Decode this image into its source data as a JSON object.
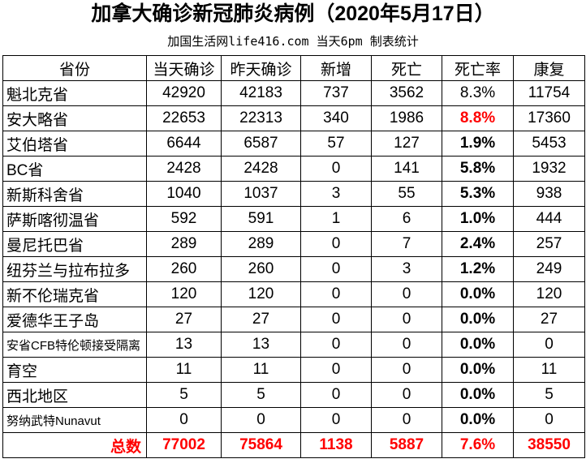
{
  "title": "加拿大确诊新冠肺炎病例（2020年5月17日）",
  "subtitle": "加国生活网life416.com 当天6pm 制表统计",
  "colors": {
    "highlight": "#ff0000"
  },
  "columns": [
    "省份",
    "当天确诊",
    "昨天确诊",
    "新增",
    "死亡",
    "死亡率",
    "康复"
  ],
  "rows": [
    {
      "name": "魁北克省",
      "today": "42920",
      "yesterday": "42183",
      "new": "737",
      "deaths": "3562",
      "rate": "8.3%",
      "recovered": "11754",
      "rate_style": "normal"
    },
    {
      "name": "安大略省",
      "today": "22653",
      "yesterday": "22313",
      "new": "340",
      "deaths": "1986",
      "rate": "8.8%",
      "recovered": "17360",
      "rate_style": "red-bold"
    },
    {
      "name": "艾伯塔省",
      "today": "6644",
      "yesterday": "6587",
      "new": "57",
      "deaths": "127",
      "rate": "1.9%",
      "recovered": "5453",
      "rate_style": "bold"
    },
    {
      "name": "BC省",
      "today": "2428",
      "yesterday": "2428",
      "new": "0",
      "deaths": "141",
      "rate": "5.8%",
      "recovered": "1932",
      "rate_style": "bold"
    },
    {
      "name": "新斯科舍省",
      "today": "1040",
      "yesterday": "1037",
      "new": "3",
      "deaths": "55",
      "rate": "5.3%",
      "recovered": "938",
      "rate_style": "bold"
    },
    {
      "name": "萨斯喀彻温省",
      "today": "592",
      "yesterday": "591",
      "new": "1",
      "deaths": "6",
      "rate": "1.0%",
      "recovered": "444",
      "rate_style": "bold"
    },
    {
      "name": "曼尼托巴省",
      "today": "289",
      "yesterday": "289",
      "new": "0",
      "deaths": "7",
      "rate": "2.4%",
      "recovered": "257",
      "rate_style": "bold"
    },
    {
      "name": "纽芬兰与拉布拉多",
      "today": "260",
      "yesterday": "260",
      "new": "0",
      "deaths": "3",
      "rate": "1.2%",
      "recovered": "249",
      "rate_style": "bold"
    },
    {
      "name": "新不伦瑞克省",
      "today": "120",
      "yesterday": "120",
      "new": "0",
      "deaths": "0",
      "rate": "0.0%",
      "recovered": "120",
      "rate_style": "bold"
    },
    {
      "name": "爱德华王子岛",
      "today": "27",
      "yesterday": "27",
      "new": "0",
      "deaths": "0",
      "rate": "0.0%",
      "recovered": "27",
      "rate_style": "bold"
    },
    {
      "name": "安省CFB特伦顿接受隔离",
      "today": "13",
      "yesterday": "13",
      "new": "0",
      "deaths": "0",
      "rate": "0.0%",
      "recovered": "0",
      "rate_style": "bold"
    },
    {
      "name": "育空",
      "today": "11",
      "yesterday": "11",
      "new": "0",
      "deaths": "0",
      "rate": "0.0%",
      "recovered": "11",
      "rate_style": "bold"
    },
    {
      "name": "西北地区",
      "today": "5",
      "yesterday": "5",
      "new": "0",
      "deaths": "0",
      "rate": "0.0%",
      "recovered": "5",
      "rate_style": "bold"
    },
    {
      "name": "努纳武特Nunavut",
      "today": "0",
      "yesterday": "0",
      "new": "0",
      "deaths": "0",
      "rate": "0.0%",
      "recovered": "0",
      "rate_style": "bold"
    }
  ],
  "total": {
    "name": "总数",
    "today": "77002",
    "yesterday": "75864",
    "new": "1138",
    "deaths": "5887",
    "rate": "7.6%",
    "recovered": "38550"
  }
}
